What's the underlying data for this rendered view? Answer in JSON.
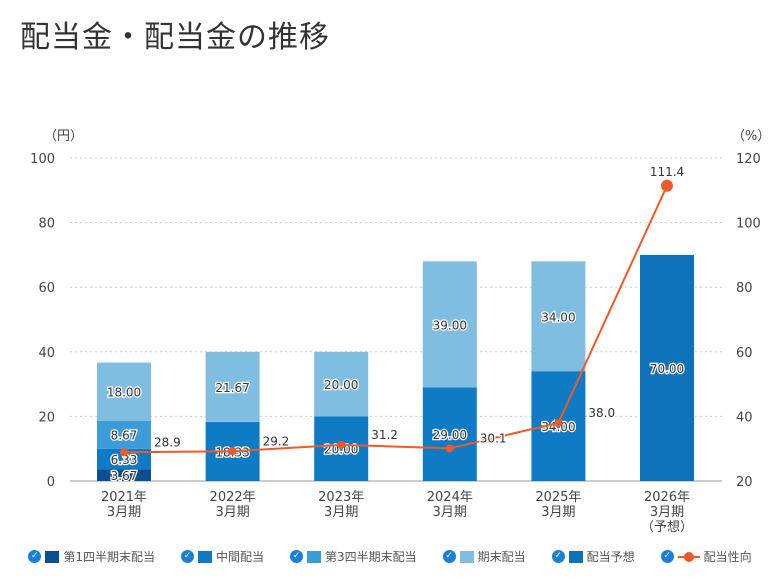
{
  "chart_data": {
    "type": "bar",
    "title": "配当金・配当金の推移",
    "left_axis": {
      "unit": "（円）",
      "ticks": [
        0,
        20,
        40,
        60,
        80,
        100
      ],
      "ylim": [
        0,
        100
      ]
    },
    "right_axis": {
      "unit": "（%）",
      "ticks": [
        20,
        40,
        60,
        80,
        100,
        120
      ],
      "ylim": [
        20,
        120
      ]
    },
    "categories": [
      [
        "2021年",
        "3月期"
      ],
      [
        "2022年",
        "3月期"
      ],
      [
        "2023年",
        "3月期"
      ],
      [
        "2024年",
        "3月期"
      ],
      [
        "2025年",
        "3月期"
      ],
      [
        "2026年",
        "3月期",
        "（予想）"
      ]
    ],
    "series": [
      {
        "name": "第1四半期末配当",
        "type": "bar",
        "color": "#0b4f93",
        "values": [
          3.67,
          null,
          null,
          null,
          null,
          null
        ],
        "labels": [
          "3.67",
          "",
          "",
          "",
          "",
          ""
        ]
      },
      {
        "name": "中間配当",
        "type": "bar",
        "color": "#0f7bc4",
        "values": [
          6.33,
          18.33,
          20.0,
          29.0,
          34.0,
          null
        ],
        "labels": [
          "6.33",
          "18.33",
          "20.00",
          "29.00",
          "34.00",
          ""
        ]
      },
      {
        "name": "第3四半期末配当",
        "type": "bar",
        "color": "#3c9bd9",
        "values": [
          8.67,
          null,
          null,
          null,
          null,
          null
        ],
        "labels": [
          "8.67",
          "",
          "",
          "",
          "",
          ""
        ]
      },
      {
        "name": "期末配当",
        "type": "bar",
        "color": "#80bee1",
        "values": [
          18.0,
          21.67,
          20.0,
          39.0,
          34.0,
          null
        ],
        "labels": [
          "18.00",
          "21.67",
          "20.00",
          "39.00",
          "34.00",
          ""
        ]
      },
      {
        "name": "配当予想",
        "type": "bar",
        "color": "#0f73bb",
        "values": [
          null,
          null,
          null,
          null,
          null,
          70.0
        ],
        "labels": [
          "",
          "",
          "",
          "",
          "",
          "70.00"
        ]
      },
      {
        "name": "配当性向",
        "type": "line",
        "axis": "right",
        "color": "#f05a28",
        "values": [
          28.9,
          29.2,
          31.2,
          30.1,
          38.0,
          111.4
        ],
        "labels": [
          "28.9",
          "29.2",
          "31.2",
          "30.1",
          "38.0",
          "111.4"
        ]
      }
    ],
    "legend_position": "bottom",
    "grid": true
  }
}
